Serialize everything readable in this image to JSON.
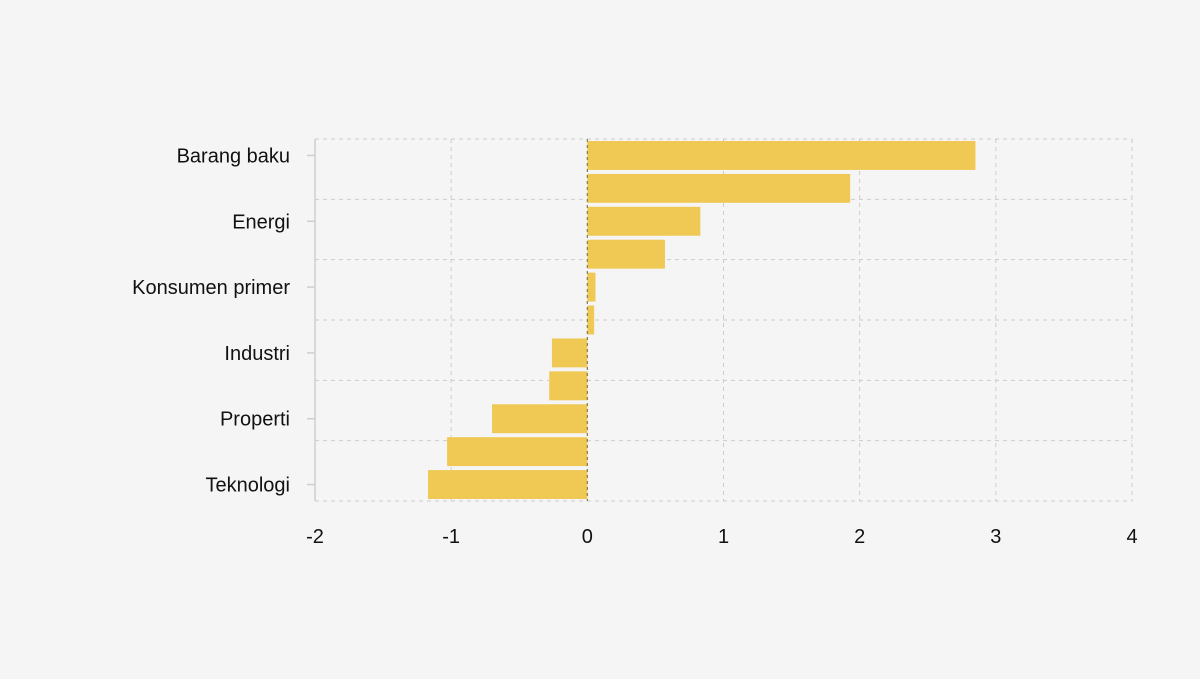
{
  "chart_data": {
    "type": "bar",
    "orientation": "horizontal",
    "title": "",
    "xlabel": "",
    "ylabel": "",
    "xlim": [
      -2,
      4
    ],
    "x_ticks": [
      "-2",
      "-1",
      "0",
      "1",
      "2",
      "3",
      "4"
    ],
    "grid": true,
    "category_labels": [
      "Barang baku",
      "Energi",
      "Konsumen primer",
      "Industri",
      "Properti",
      "Teknologi"
    ],
    "bar_color": "#f0c954",
    "gridline_color": "#cccccc",
    "zero_line_color": "#8a7a4a",
    "bars": [
      2.85,
      1.93,
      0.83,
      0.57,
      0.06,
      0.05,
      -0.26,
      -0.28,
      -0.7,
      -1.03,
      -1.17
    ]
  }
}
